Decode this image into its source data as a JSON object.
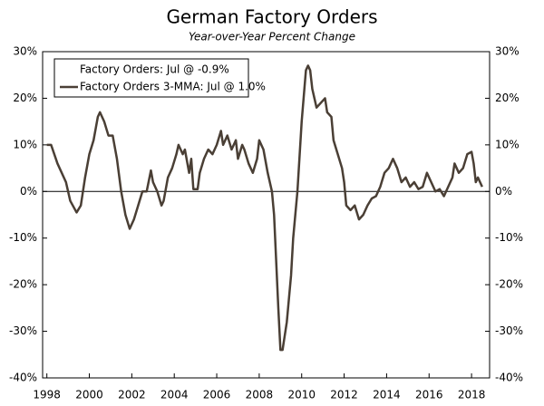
{
  "chart_data": {
    "type": "line",
    "title": "German Factory Orders",
    "subtitle": "Year-over-Year Percent Change",
    "legend_header": "Factory Orders: Jul @ -0.9%",
    "x": [
      1998.0,
      1998.2,
      1998.5,
      1998.9,
      1999.1,
      1999.4,
      1999.6,
      1999.8,
      2000.0,
      2000.2,
      2000.4,
      2000.5,
      2000.7,
      2000.9,
      2001.1,
      2001.3,
      2001.5,
      2001.7,
      2001.9,
      2002.1,
      2002.3,
      2002.5,
      2002.7,
      2002.9,
      2003.0,
      2003.2,
      2003.4,
      2003.5,
      2003.7,
      2003.9,
      2004.1,
      2004.2,
      2004.4,
      2004.5,
      2004.7,
      2004.8,
      2004.9,
      2005.1,
      2005.2,
      2005.4,
      2005.6,
      2005.8,
      2006.0,
      2006.2,
      2006.3,
      2006.5,
      2006.7,
      2006.9,
      2007.0,
      2007.2,
      2007.3,
      2007.5,
      2007.7,
      2007.9,
      2008.0,
      2008.2,
      2008.4,
      2008.6,
      2008.7,
      2008.8,
      2008.9,
      2009.0,
      2009.1,
      2009.3,
      2009.5,
      2009.6,
      2009.8,
      2010.0,
      2010.2,
      2010.3,
      2010.4,
      2010.5,
      2010.7,
      2010.9,
      2011.1,
      2011.2,
      2011.4,
      2011.5,
      2011.7,
      2011.9,
      2012.0,
      2012.1,
      2012.3,
      2012.5,
      2012.7,
      2012.9,
      2013.1,
      2013.3,
      2013.5,
      2013.7,
      2013.9,
      2014.1,
      2014.3,
      2014.5,
      2014.7,
      2014.9,
      2015.1,
      2015.3,
      2015.5,
      2015.7,
      2015.9,
      2016.1,
      2016.3,
      2016.5,
      2016.7,
      2016.9,
      2017.1,
      2017.2,
      2017.4,
      2017.6,
      2017.8,
      2018.0,
      2018.1,
      2018.2,
      2018.3,
      2018.5
    ],
    "series": [
      {
        "name": "Factory Orders 3-MMA: Jul @ 1.0%",
        "color": "#4a3f35",
        "values": [
          10,
          10,
          6,
          2,
          -2,
          -4.5,
          -3,
          3,
          8,
          11,
          16,
          17,
          15,
          12,
          12,
          7,
          0,
          -5,
          -8,
          -6,
          -3,
          0,
          0,
          4.5,
          2,
          0,
          -3,
          -2,
          3,
          5,
          8,
          10,
          8,
          9,
          4,
          7,
          0.5,
          0.5,
          4,
          7,
          9,
          8,
          10,
          13,
          10,
          12,
          9,
          11,
          7,
          10,
          9,
          6,
          4,
          7,
          11,
          9,
          4,
          0,
          -5,
          -15,
          -25,
          -34,
          -34,
          -28,
          -18,
          -10,
          0,
          15,
          26,
          27,
          26,
          22,
          18,
          19,
          20,
          17,
          16,
          11,
          8,
          5,
          2,
          -3,
          -4,
          -3,
          -6,
          -5,
          -3,
          -1.5,
          -1,
          1,
          4,
          5,
          7,
          5,
          2,
          3,
          1,
          2,
          0.5,
          1,
          4,
          2,
          0,
          0.5,
          -1,
          1,
          3,
          6,
          4,
          5,
          8,
          8.5,
          6,
          2,
          3,
          1
        ]
      }
    ],
    "xlim": [
      1997.8,
      2018.85
    ],
    "xticks": [
      1998,
      2000,
      2002,
      2004,
      2006,
      2008,
      2010,
      2012,
      2014,
      2016,
      2018
    ],
    "ylim": [
      -40,
      30
    ],
    "yticks": [
      {
        "value": -40,
        "label": "-40%"
      },
      {
        "value": -30,
        "label": "-30%"
      },
      {
        "value": -20,
        "label": "-20%"
      },
      {
        "value": -10,
        "label": "-10%"
      },
      {
        "value": 0,
        "label": "0%"
      },
      {
        "value": 10,
        "label": "10%"
      },
      {
        "value": 20,
        "label": "20%"
      },
      {
        "value": 30,
        "label": "30%"
      }
    ]
  }
}
